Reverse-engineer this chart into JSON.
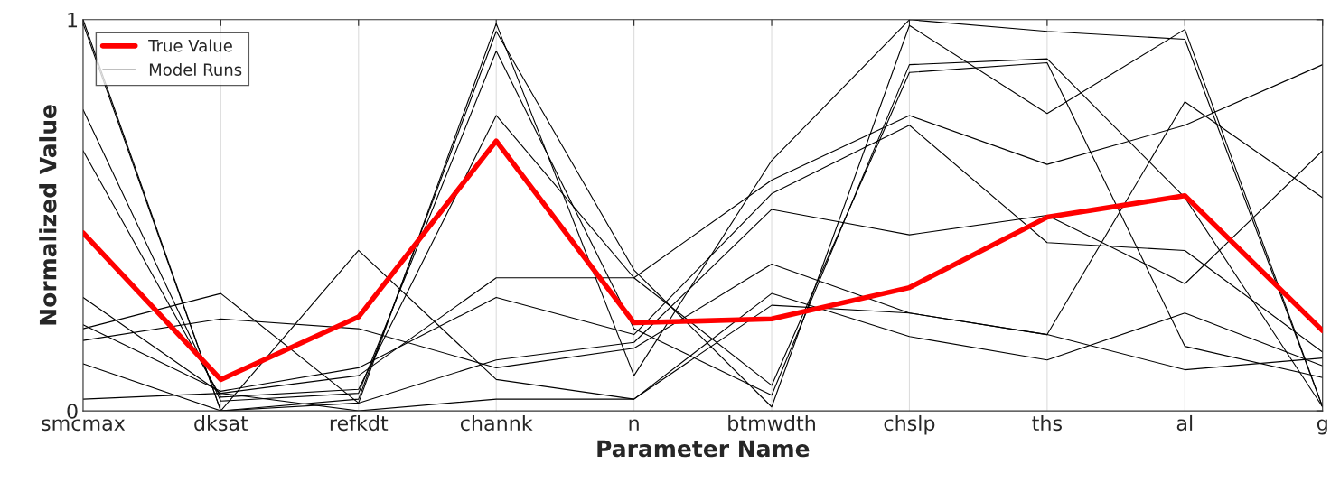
{
  "chart_data": {
    "type": "line",
    "xlabel": "Parameter Name",
    "ylabel": "Normalized Value",
    "categories": [
      "smcmax",
      "dksat",
      "refkdt",
      "channk",
      "n",
      "btmwdth",
      "chslp",
      "ths",
      "al",
      "g"
    ],
    "ylim": [
      0,
      1
    ],
    "yticks": [
      0,
      1
    ],
    "grid": "x",
    "legend": "top left",
    "marker": "none",
    "line_style": "solid",
    "series": [
      {
        "name": "True Value",
        "color": "#ff0000",
        "values": [
          0.455,
          0.08,
          0.24,
          0.69,
          0.225,
          0.235,
          0.315,
          0.495,
          0.55,
          0.205
        ]
      },
      {
        "name": "Model Runs",
        "color": "#000000",
        "values": [
          1.0,
          0.0,
          0.02,
          0.99,
          0.09,
          0.64,
          1.0,
          0.97,
          0.95,
          0.01
        ]
      },
      {
        "color": "#000000",
        "values": [
          0.99,
          0.0,
          0.03,
          0.97,
          0.36,
          0.01,
          0.985,
          0.76,
          0.975,
          0.01
        ]
      },
      {
        "color": "#000000",
        "values": [
          0.77,
          0.025,
          0.045,
          0.92,
          0.21,
          0.04,
          0.885,
          0.9,
          0.545,
          0.01
        ]
      },
      {
        "color": "#000000",
        "values": [
          0.665,
          0.035,
          0.055,
          0.755,
          0.34,
          0.065,
          0.865,
          0.89,
          0.165,
          0.085
        ]
      },
      {
        "color": "#000000",
        "values": [
          0.29,
          0.045,
          0.09,
          0.34,
          0.34,
          0.59,
          0.755,
          0.63,
          0.73,
          0.885
        ]
      },
      {
        "color": "#000000",
        "values": [
          0.22,
          0.05,
          0.11,
          0.29,
          0.195,
          0.555,
          0.73,
          0.43,
          0.41,
          0.15
        ]
      },
      {
        "color": "#000000",
        "values": [
          0.21,
          0.3,
          0.02,
          0.13,
          0.175,
          0.515,
          0.45,
          0.5,
          0.325,
          0.665
        ]
      },
      {
        "color": "#000000",
        "values": [
          0.18,
          0.235,
          0.21,
          0.11,
          0.16,
          0.375,
          0.25,
          0.195,
          0.79,
          0.545
        ]
      },
      {
        "color": "#000000",
        "values": [
          0.12,
          0.0,
          0.41,
          0.08,
          0.03,
          0.3,
          0.19,
          0.13,
          0.25,
          0.115
        ]
      },
      {
        "color": "#000000",
        "values": [
          0.03,
          0.045,
          0.0,
          0.03,
          0.03,
          0.27,
          0.25,
          0.195,
          0.105,
          0.135
        ]
      }
    ]
  }
}
